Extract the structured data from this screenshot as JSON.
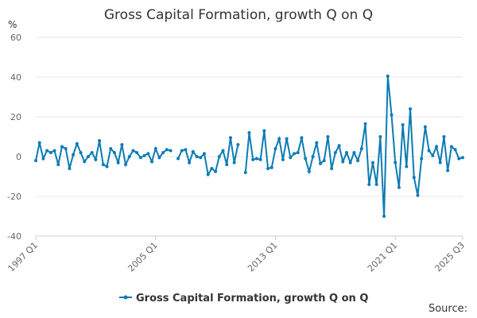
{
  "chart_data": {
    "type": "line",
    "title": "Gross Capital Formation, growth Q on Q",
    "y_label": "%",
    "source": "Source:",
    "categories": [
      "1997 Q1",
      null,
      null,
      null,
      null,
      null,
      null,
      null,
      null,
      null,
      null,
      null,
      null,
      null,
      null,
      null,
      null,
      null,
      null,
      null,
      null,
      null,
      null,
      null,
      null,
      null,
      null,
      null,
      null,
      null,
      null,
      null,
      "2005 Q1",
      null,
      null,
      null,
      null,
      null,
      null,
      null,
      null,
      null,
      null,
      null,
      null,
      null,
      null,
      null,
      null,
      null,
      null,
      null,
      null,
      null,
      null,
      null,
      null,
      null,
      null,
      null,
      null,
      null,
      null,
      null,
      "2013 Q1",
      null,
      null,
      null,
      null,
      null,
      null,
      null,
      null,
      null,
      null,
      null,
      null,
      null,
      null,
      null,
      null,
      null,
      null,
      null,
      null,
      null,
      null,
      null,
      null,
      null,
      null,
      null,
      null,
      null,
      null,
      null,
      "2021 Q1",
      null,
      null,
      null,
      null,
      null,
      null,
      null,
      null,
      null,
      null,
      null,
      null,
      null,
      null,
      null,
      null,
      null,
      "2025 Q3"
    ],
    "series": [
      {
        "name": "Gross Capital Formation, growth Q on Q",
        "color": "#0b7bb5",
        "values": [
          -2,
          7,
          -1,
          3,
          2,
          3,
          -4,
          5,
          4,
          -6,
          1,
          6.5,
          2,
          -2.5,
          0,
          2,
          -1.5,
          8,
          -4,
          -5,
          4,
          2,
          -3,
          6,
          -4,
          0,
          3,
          2,
          -0.5,
          0.5,
          1.5,
          -2.5,
          4,
          -0.5,
          2,
          3.5,
          3,
          null,
          -1,
          3,
          3.5,
          -3,
          2.5,
          0,
          -0.5,
          1.5,
          -9,
          -6,
          -7.5,
          0,
          3,
          -4,
          9.5,
          -3,
          6,
          null,
          -8,
          12,
          -1.5,
          -1,
          -1.5,
          13,
          -6,
          -5.5,
          4,
          9,
          -1.5,
          9,
          -0.5,
          1.5,
          2,
          9.5,
          -1,
          -7.5,
          0,
          7,
          -3.5,
          -2,
          10,
          -6,
          2,
          5.5,
          -2.5,
          2,
          -3,
          2,
          -2,
          4,
          16.5,
          -14,
          -3,
          -14,
          10,
          -30,
          40.5,
          21,
          -3,
          -15.5,
          16,
          -5,
          24,
          -10.5,
          -19.5,
          -1,
          15,
          3,
          0.5,
          5,
          -3,
          10,
          -7,
          5,
          3.5,
          -1,
          -0.5
        ]
      }
    ],
    "ylim": [
      -40,
      60
    ],
    "yticks": [
      -40,
      -20,
      0,
      20,
      40,
      60
    ],
    "grid": true,
    "legend": "bottom"
  }
}
